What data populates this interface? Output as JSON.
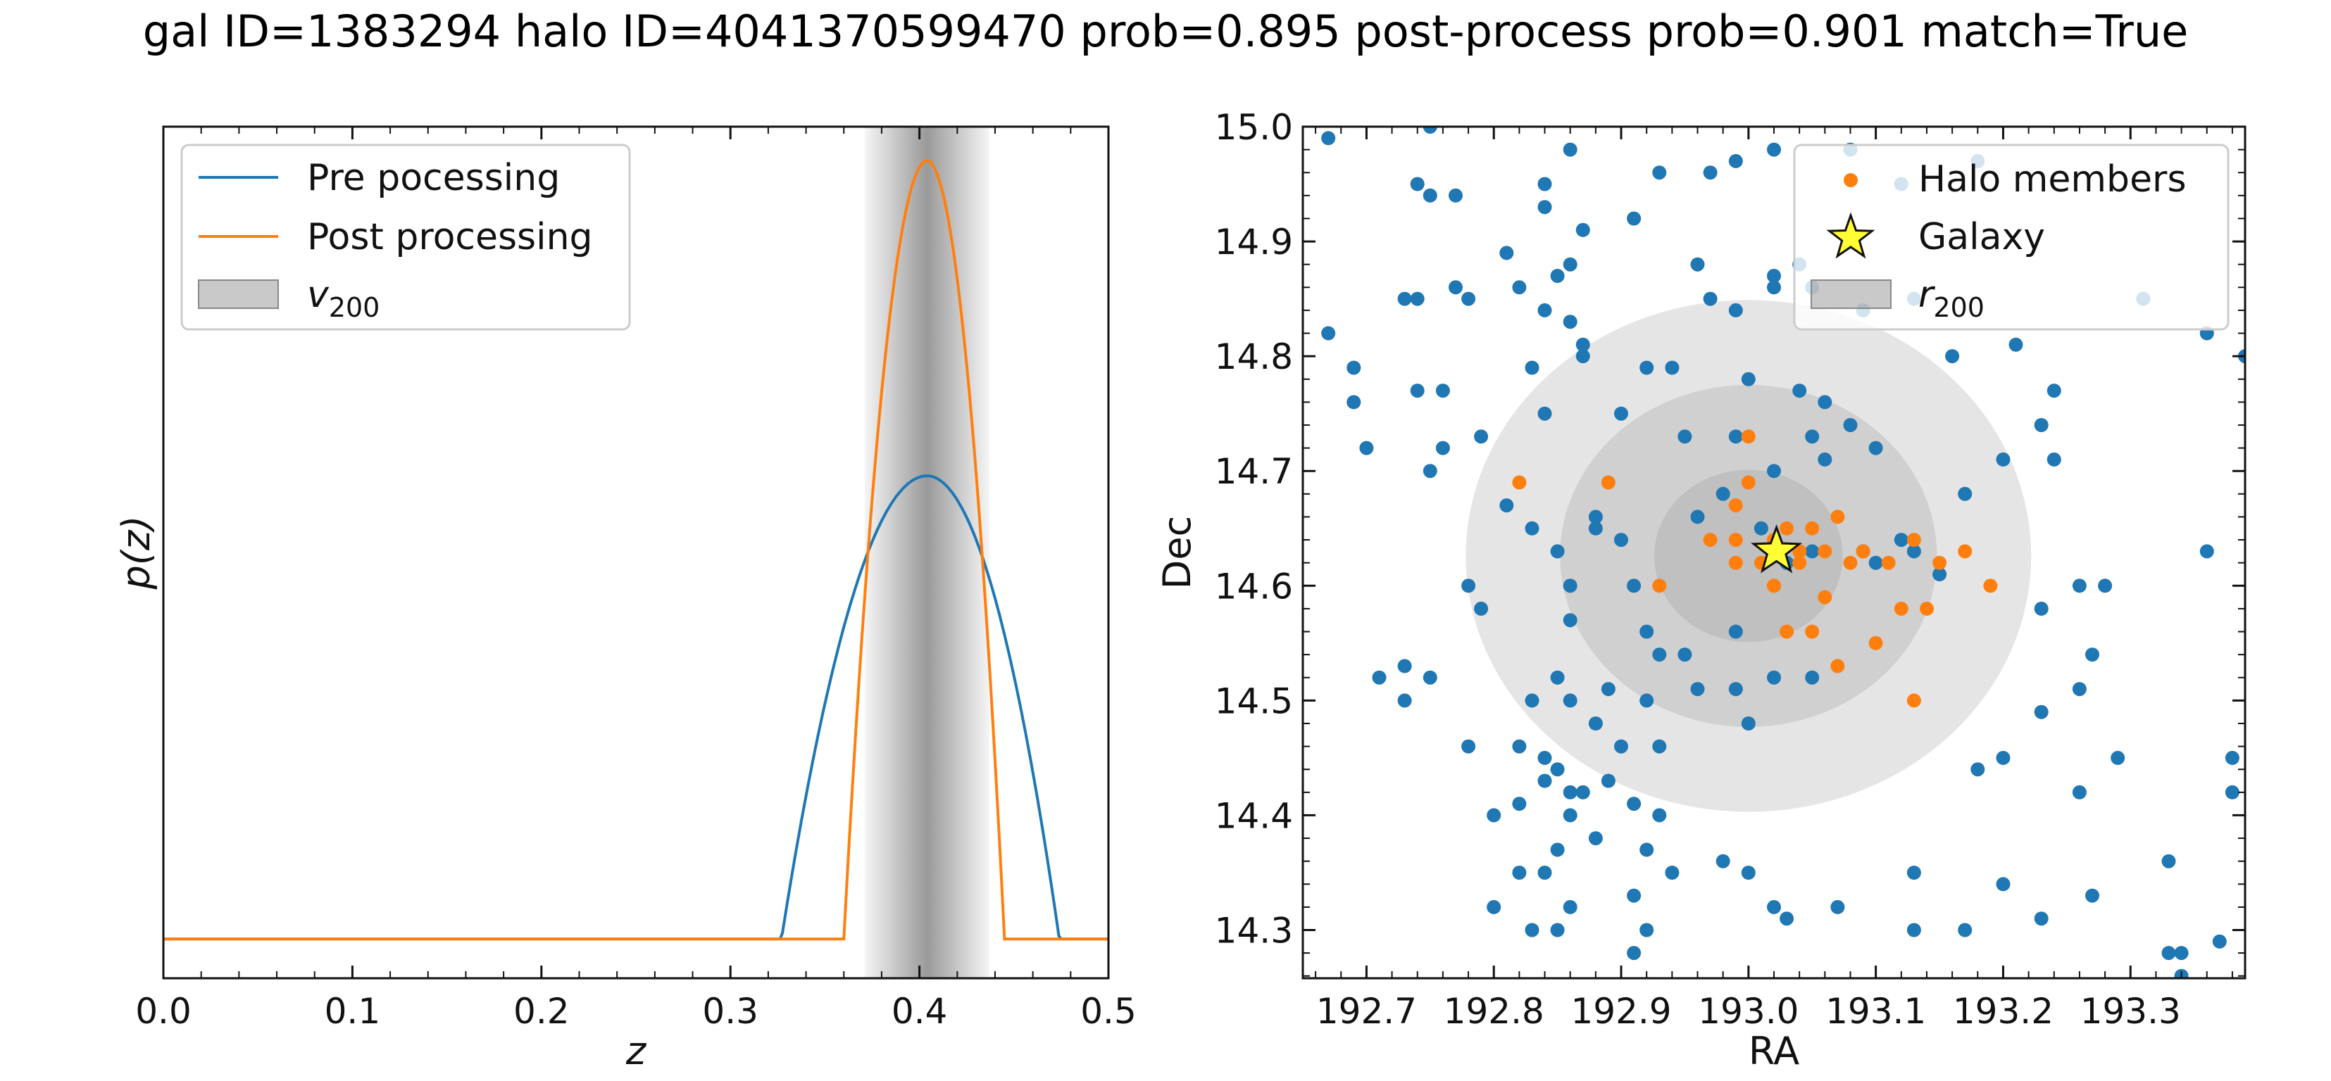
{
  "suptitle": "gal ID=1383294   halo ID=4041370599470   prob=0.895  post-process prob=0.901   match=True",
  "chart_data": [
    {
      "type": "line",
      "xlabel": "z",
      "ylabel": "p(z)",
      "xlim": [
        0.0,
        0.5
      ],
      "ylim": [
        0,
        1.0
      ],
      "xticks": [
        "0.0",
        "0.1",
        "0.2",
        "0.3",
        "0.4",
        "0.5"
      ],
      "grid": false,
      "legend_position": "top-left",
      "shaded_band": {
        "label": "v_200",
        "label_main": "v",
        "label_sub": "200",
        "center": 0.404,
        "half_width": 0.033,
        "color": "#888888"
      },
      "series": [
        {
          "name": "Pre pocessing",
          "color": "#1f77b4",
          "baseline": 0.046,
          "start": 0.327,
          "end": 0.474,
          "peak_x": 0.404,
          "peak_y": 0.59,
          "shape": "parabola"
        },
        {
          "name": "Post processing",
          "color": "#ff7f0e",
          "baseline": 0.046,
          "start": 0.36,
          "end": 0.445,
          "peak_x": 0.404,
          "peak_y": 0.96,
          "shape": "parabola"
        }
      ]
    },
    {
      "type": "scatter",
      "xlabel": "RA",
      "ylabel": "Dec",
      "xlim": [
        192.65,
        193.39
      ],
      "ylim": [
        14.258,
        15.0
      ],
      "xticks": [
        "192.7",
        "192.8",
        "192.9",
        "193.0",
        "193.1",
        "193.2",
        "193.3"
      ],
      "yticks": [
        "14.3",
        "14.4",
        "14.5",
        "14.6",
        "14.7",
        "14.8",
        "14.9",
        "15.0"
      ],
      "grid": false,
      "legend_position": "top-right",
      "legend": [
        {
          "label": "Halo members",
          "color": "#ff7f0e",
          "marker": "circle"
        },
        {
          "label": "Galaxy",
          "color": "#ffff33",
          "marker": "star"
        },
        {
          "label_main": "r",
          "label_sub": "200",
          "color": "#888888",
          "marker": "patch"
        }
      ],
      "r200_center": [
        193.0,
        14.626
      ],
      "r200_radii_ra": [
        0.074,
        0.148,
        0.222
      ],
      "r200_radii_dec": [
        0.075,
        0.149,
        0.223
      ],
      "galaxy": [
        193.022,
        14.63
      ],
      "field_color": "#1f77b4",
      "member_color": "#ff7f0e",
      "field_points": [
        [
          192.75,
          15.0
        ],
        [
          192.67,
          14.99
        ],
        [
          192.74,
          14.95
        ],
        [
          192.75,
          14.94
        ],
        [
          192.77,
          14.94
        ],
        [
          192.86,
          14.98
        ],
        [
          192.93,
          14.96
        ],
        [
          192.99,
          14.97
        ],
        [
          193.02,
          14.98
        ],
        [
          193.08,
          14.98
        ],
        [
          193.12,
          14.95
        ],
        [
          193.18,
          14.97
        ],
        [
          192.84,
          14.95
        ],
        [
          192.84,
          14.93
        ],
        [
          192.87,
          14.91
        ],
        [
          192.91,
          14.92
        ],
        [
          192.97,
          14.96
        ],
        [
          192.96,
          14.88
        ],
        [
          193.02,
          14.87
        ],
        [
          193.04,
          14.88
        ],
        [
          193.05,
          14.86
        ],
        [
          193.13,
          14.85
        ],
        [
          192.77,
          14.86
        ],
        [
          192.78,
          14.85
        ],
        [
          192.73,
          14.85
        ],
        [
          192.74,
          14.85
        ],
        [
          192.81,
          14.89
        ],
        [
          192.82,
          14.86
        ],
        [
          192.85,
          14.87
        ],
        [
          192.86,
          14.88
        ],
        [
          192.84,
          14.84
        ],
        [
          192.86,
          14.83
        ],
        [
          192.87,
          14.81
        ],
        [
          192.87,
          14.8
        ],
        [
          192.83,
          14.79
        ],
        [
          192.84,
          14.75
        ],
        [
          192.79,
          14.73
        ],
        [
          192.76,
          14.72
        ],
        [
          192.75,
          14.7
        ],
        [
          192.74,
          14.77
        ],
        [
          192.76,
          14.77
        ],
        [
          192.69,
          14.79
        ],
        [
          192.69,
          14.76
        ],
        [
          192.67,
          14.82
        ],
        [
          192.7,
          14.72
        ],
        [
          192.97,
          14.85
        ],
        [
          192.99,
          14.84
        ],
        [
          193.02,
          14.86
        ],
        [
          193.0,
          14.78
        ],
        [
          192.94,
          14.79
        ],
        [
          192.92,
          14.79
        ],
        [
          192.9,
          14.75
        ],
        [
          193.04,
          14.77
        ],
        [
          193.06,
          14.76
        ],
        [
          193.08,
          14.74
        ],
        [
          193.1,
          14.72
        ],
        [
          192.95,
          14.73
        ],
        [
          192.99,
          14.73
        ],
        [
          193.05,
          14.73
        ],
        [
          193.06,
          14.71
        ],
        [
          193.21,
          14.81
        ],
        [
          193.24,
          14.77
        ],
        [
          193.23,
          14.74
        ],
        [
          193.24,
          14.71
        ],
        [
          193.2,
          14.71
        ],
        [
          193.16,
          14.8
        ],
        [
          193.09,
          14.84
        ],
        [
          193.31,
          14.85
        ],
        [
          193.36,
          14.82
        ],
        [
          193.39,
          14.8
        ],
        [
          192.81,
          14.67
        ],
        [
          192.79,
          14.58
        ],
        [
          192.78,
          14.6
        ],
        [
          192.83,
          14.65
        ],
        [
          192.85,
          14.63
        ],
        [
          192.86,
          14.6
        ],
        [
          192.86,
          14.57
        ],
        [
          192.88,
          14.66
        ],
        [
          192.88,
          14.65
        ],
        [
          192.9,
          14.64
        ],
        [
          192.91,
          14.6
        ],
        [
          192.92,
          14.56
        ],
        [
          192.93,
          14.54
        ],
        [
          192.95,
          14.54
        ],
        [
          192.99,
          14.56
        ],
        [
          192.96,
          14.66
        ],
        [
          192.98,
          14.68
        ],
        [
          193.02,
          14.7
        ],
        [
          193.01,
          14.65
        ],
        [
          193.03,
          14.62
        ],
        [
          193.05,
          14.63
        ],
        [
          193.09,
          14.63
        ],
        [
          193.1,
          14.62
        ],
        [
          193.12,
          14.64
        ],
        [
          193.13,
          14.63
        ],
        [
          193.15,
          14.61
        ],
        [
          193.17,
          14.68
        ],
        [
          193.05,
          14.52
        ],
        [
          193.02,
          14.52
        ],
        [
          192.99,
          14.51
        ],
        [
          192.96,
          14.51
        ],
        [
          193.0,
          14.48
        ],
        [
          192.75,
          14.52
        ],
        [
          192.73,
          14.53
        ],
        [
          192.71,
          14.52
        ],
        [
          192.73,
          14.5
        ],
        [
          192.78,
          14.46
        ],
        [
          192.82,
          14.46
        ],
        [
          192.83,
          14.5
        ],
        [
          192.85,
          14.52
        ],
        [
          192.86,
          14.5
        ],
        [
          192.88,
          14.48
        ],
        [
          192.89,
          14.51
        ],
        [
          192.92,
          14.5
        ],
        [
          192.93,
          14.46
        ],
        [
          192.9,
          14.46
        ],
        [
          192.89,
          14.43
        ],
        [
          192.84,
          14.45
        ],
        [
          192.84,
          14.43
        ],
        [
          192.85,
          14.44
        ],
        [
          192.86,
          14.42
        ],
        [
          192.87,
          14.42
        ],
        [
          192.86,
          14.4
        ],
        [
          192.88,
          14.38
        ],
        [
          192.85,
          14.37
        ],
        [
          192.82,
          14.41
        ],
        [
          192.8,
          14.4
        ],
        [
          192.84,
          14.35
        ],
        [
          192.82,
          14.35
        ],
        [
          192.86,
          14.32
        ],
        [
          192.8,
          14.32
        ],
        [
          192.83,
          14.3
        ],
        [
          192.85,
          14.3
        ],
        [
          192.91,
          14.41
        ],
        [
          192.93,
          14.4
        ],
        [
          192.92,
          14.37
        ],
        [
          192.94,
          14.35
        ],
        [
          192.91,
          14.33
        ],
        [
          192.92,
          14.3
        ],
        [
          192.91,
          14.28
        ],
        [
          192.98,
          14.36
        ],
        [
          193.0,
          14.35
        ],
        [
          193.02,
          14.32
        ],
        [
          193.03,
          14.31
        ],
        [
          193.07,
          14.32
        ],
        [
          193.13,
          14.35
        ],
        [
          193.13,
          14.3
        ],
        [
          193.17,
          14.3
        ],
        [
          193.2,
          14.34
        ],
        [
          193.23,
          14.31
        ],
        [
          193.27,
          14.33
        ],
        [
          193.18,
          14.44
        ],
        [
          193.2,
          14.45
        ],
        [
          193.23,
          14.49
        ],
        [
          193.26,
          14.51
        ],
        [
          193.27,
          14.54
        ],
        [
          193.26,
          14.42
        ],
        [
          193.29,
          14.45
        ],
        [
          193.33,
          14.36
        ],
        [
          193.33,
          14.28
        ],
        [
          193.34,
          14.28
        ],
        [
          193.34,
          14.26
        ],
        [
          193.37,
          14.29
        ],
        [
          193.38,
          14.42
        ],
        [
          193.38,
          14.45
        ],
        [
          193.36,
          14.63
        ],
        [
          193.26,
          14.6
        ],
        [
          193.28,
          14.6
        ],
        [
          193.23,
          14.58
        ]
      ],
      "member_points": [
        [
          192.82,
          14.69
        ],
        [
          192.89,
          14.69
        ],
        [
          192.93,
          14.6
        ],
        [
          192.97,
          14.64
        ],
        [
          192.99,
          14.62
        ],
        [
          192.99,
          14.67
        ],
        [
          193.0,
          14.69
        ],
        [
          193.01,
          14.62
        ],
        [
          193.02,
          14.64
        ],
        [
          193.03,
          14.65
        ],
        [
          193.02,
          14.6
        ],
        [
          193.04,
          14.63
        ],
        [
          193.05,
          14.65
        ],
        [
          193.06,
          14.63
        ],
        [
          193.07,
          14.66
        ],
        [
          193.08,
          14.62
        ],
        [
          193.06,
          14.59
        ],
        [
          193.05,
          14.56
        ],
        [
          193.03,
          14.56
        ],
        [
          193.07,
          14.53
        ],
        [
          193.1,
          14.55
        ],
        [
          193.12,
          14.58
        ],
        [
          193.14,
          14.58
        ],
        [
          193.13,
          14.5
        ],
        [
          193.11,
          14.62
        ],
        [
          193.13,
          14.64
        ],
        [
          193.17,
          14.63
        ],
        [
          193.19,
          14.6
        ],
        [
          193.15,
          14.62
        ],
        [
          193.09,
          14.63
        ],
        [
          193.0,
          14.73
        ],
        [
          193.02,
          14.6
        ],
        [
          193.04,
          14.62
        ],
        [
          192.99,
          14.64
        ]
      ]
    }
  ]
}
